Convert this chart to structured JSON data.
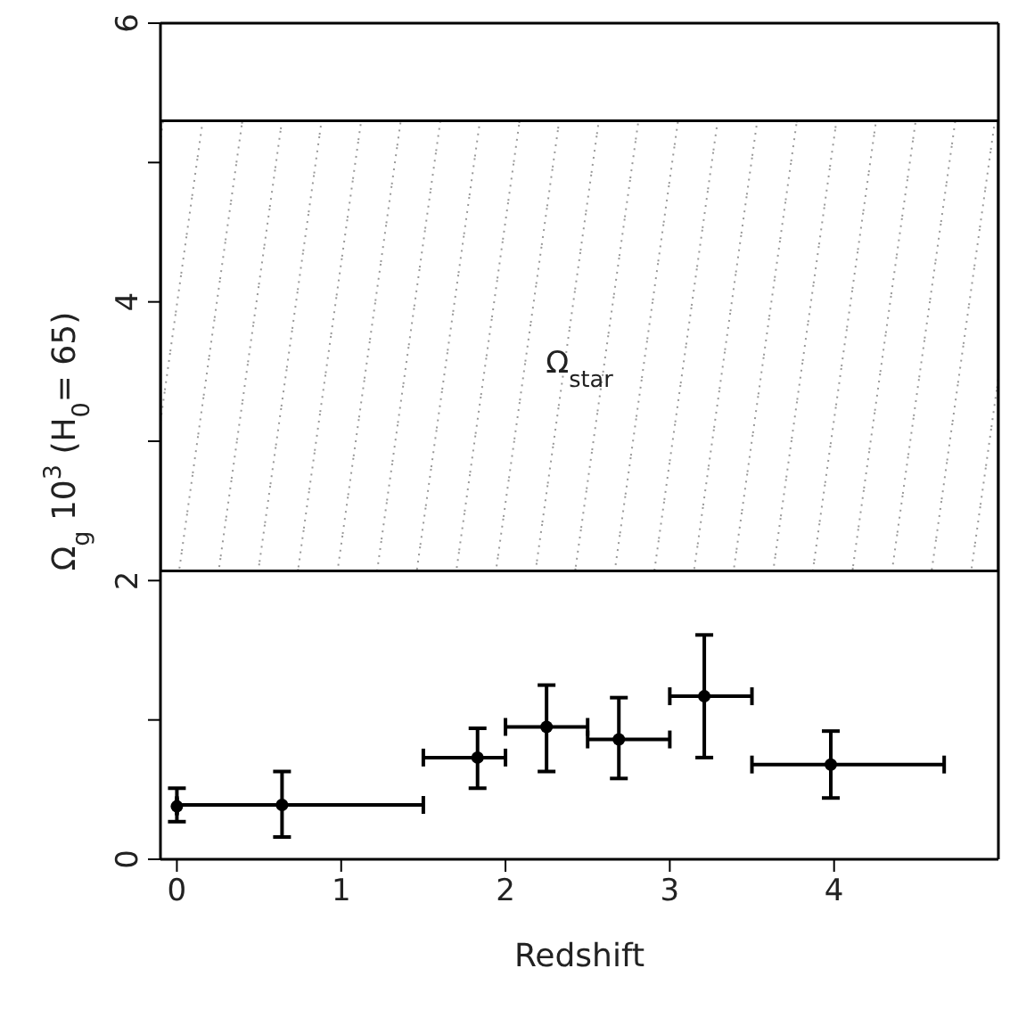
{
  "chart_data": {
    "type": "scatter",
    "xlabel": "Redshift",
    "ylabel": "Ω$_{g}$ 10$^{3}$ (H$_{0}$= 65)",
    "xlim": [
      -0.1,
      5
    ],
    "xticks": [
      0,
      1,
      2,
      3,
      4
    ],
    "ylim": [
      0,
      6
    ],
    "yticks": [
      0,
      {
        "value": 1,
        "label": null
      },
      2,
      {
        "value": 3,
        "label": null
      },
      4,
      {
        "value": 5,
        "label": null
      },
      6
    ],
    "marker": "circle",
    "series": [
      {
        "color": "#000000",
        "x": [
          0,
          0.64,
          1.83,
          2.25,
          2.69,
          3.21,
          3.98
        ],
        "values": [
          0.38,
          0.39,
          0.73,
          0.95,
          0.86,
          1.17,
          0.68
        ],
        "errors": [
          [
            0.27,
            0.51
          ],
          [
            0.16,
            0.63
          ],
          [
            0.51,
            0.94
          ],
          [
            0.63,
            1.25
          ],
          [
            0.58,
            1.16
          ],
          [
            0.73,
            1.61
          ],
          [
            0.44,
            0.92
          ]
        ],
        "xerrors": [
          null,
          [
            0,
            1.5
          ],
          [
            1.5,
            2
          ],
          [
            2,
            2.5
          ],
          [
            2.5,
            3
          ],
          [
            3,
            3.5
          ],
          [
            3.5,
            4.67
          ]
        ]
      }
    ],
    "bands": [
      {
        "axis": "y",
        "from": 2.07,
        "to": 5.3,
        "color": "#000000"
      }
    ],
    "annotations": [
      "Ω$_{star}$"
    ]
  }
}
